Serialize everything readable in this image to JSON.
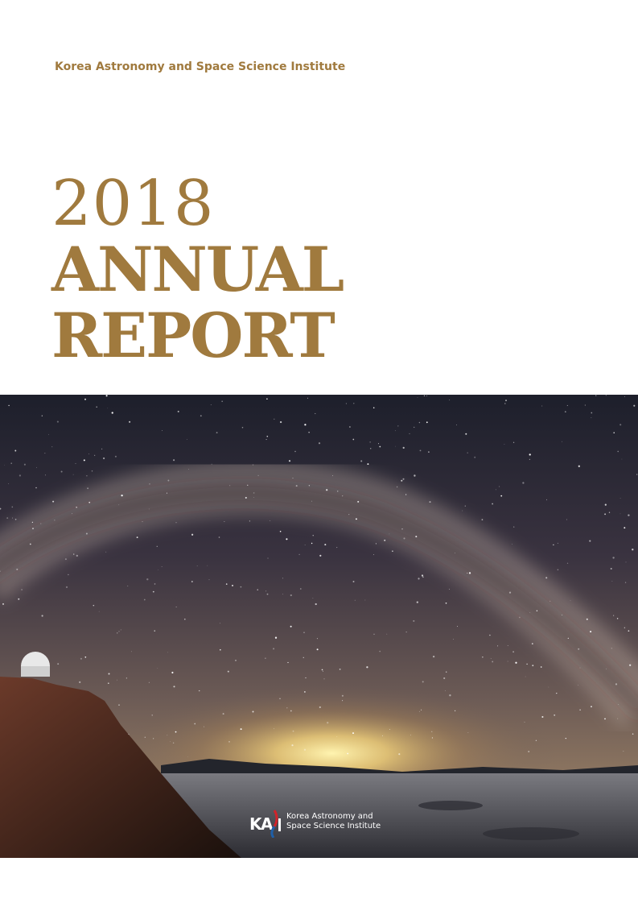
{
  "header": {
    "organization": "Korea Astronomy and Space Science Institute"
  },
  "title": {
    "year": "2018",
    "line1": "ANNUAL",
    "line2": "REPORT"
  },
  "photo": {
    "icon": "milky-way-observatory-photo"
  },
  "logo": {
    "mark": "KASI",
    "text_line1": "Korea Astronomy and",
    "text_line2": "Space Science Institute",
    "colors": {
      "red": "#d2232a",
      "blue": "#1f5fa8"
    }
  },
  "colors": {
    "accent": "#a07a3e"
  }
}
